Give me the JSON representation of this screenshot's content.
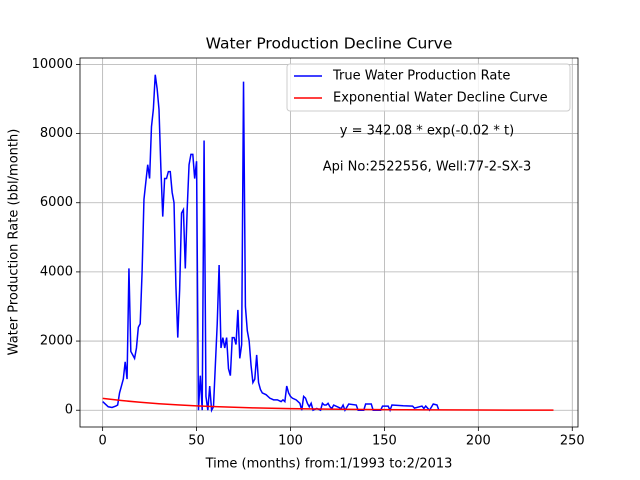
{
  "chart_data": {
    "type": "line",
    "title": "Water Production Decline Curve",
    "xlabel": "Time (months) from:1/1993 to:2/2013",
    "ylabel": "Water Production Rate (bbl/month)",
    "annotations": [
      "y = 342.08 * exp(-0.02 * t)",
      "Api No:2522556, Well:77-2-SX-3"
    ],
    "xlim": [
      -12.05,
      253.05
    ],
    "ylim": [
      -485,
      10185
    ],
    "xticks": [
      0,
      50,
      100,
      150,
      200,
      250
    ],
    "yticks": [
      0,
      2000,
      4000,
      6000,
      8000,
      10000
    ],
    "grid": true,
    "legend": "upper right",
    "series": [
      {
        "name": "True Water Production Rate",
        "color": "#0000ff",
        "x": [
          0,
          2,
          3,
          5,
          7,
          8,
          9,
          10,
          11,
          12,
          13,
          14,
          15,
          16,
          17,
          18,
          19,
          20,
          21,
          22,
          23,
          24,
          25,
          26,
          27,
          28,
          29,
          30,
          31,
          32,
          33,
          34,
          35,
          36,
          37,
          38,
          39,
          40,
          41,
          42,
          43,
          44,
          45,
          46,
          47,
          48,
          49,
          50,
          51,
          52,
          53,
          54,
          55,
          56,
          57,
          58,
          59,
          60,
          61,
          62,
          63,
          64,
          65,
          66,
          67,
          68,
          69,
          70,
          71,
          72,
          73,
          74,
          75,
          76,
          77,
          78,
          79,
          80,
          81,
          82,
          83,
          84,
          85,
          87,
          89,
          91,
          93,
          95,
          96,
          97,
          98,
          99,
          100,
          101,
          103,
          105,
          106,
          107,
          108,
          109,
          110,
          111,
          112,
          114,
          116,
          117,
          118,
          119,
          120,
          121,
          122,
          123,
          125,
          127,
          128,
          129,
          131,
          135,
          136,
          139,
          140,
          143,
          144,
          148,
          149,
          152,
          153,
          154,
          160,
          165,
          166,
          170,
          171,
          172,
          174,
          176,
          178,
          179
        ],
        "values": [
          250,
          150,
          100,
          80,
          120,
          150,
          500,
          700,
          900,
          1400,
          900,
          4100,
          1700,
          1600,
          1500,
          1800,
          2400,
          2500,
          4000,
          6100,
          6600,
          7100,
          6700,
          8200,
          8700,
          9700,
          9300,
          8700,
          7000,
          5600,
          6700,
          6700,
          6900,
          6900,
          6300,
          6000,
          3600,
          2100,
          3500,
          5700,
          5800,
          4100,
          5800,
          7100,
          7400,
          7400,
          6700,
          7200,
          0,
          1000,
          0,
          7800,
          400,
          0,
          700,
          0,
          100,
          1300,
          2500,
          4200,
          1800,
          2100,
          1800,
          2100,
          1200,
          1000,
          2100,
          2100,
          1900,
          2900,
          1500,
          1900,
          9500,
          3000,
          2300,
          2000,
          1300,
          800,
          900,
          1600,
          800,
          600,
          500,
          450,
          350,
          300,
          300,
          250,
          300,
          250,
          700,
          500,
          400,
          350,
          300,
          200,
          0,
          400,
          350,
          200,
          100,
          200,
          0,
          50,
          0,
          200,
          150,
          150,
          200,
          100,
          50,
          150,
          100,
          50,
          150,
          0,
          180,
          150,
          0,
          0,
          180,
          180,
          0,
          0,
          120,
          120,
          0,
          150,
          130,
          120,
          60,
          120,
          50,
          120,
          0,
          180,
          150,
          0
        ]
      },
      {
        "name": "Exponential Water Decline Curve",
        "color": "#ff0000",
        "x": [
          0,
          10,
          20,
          30,
          40,
          50,
          60,
          70,
          80,
          90,
          100,
          120,
          140,
          160,
          180,
          200,
          220,
          240
        ],
        "values": [
          342.08,
          280.07,
          229.3,
          187.73,
          153.7,
          125.84,
          103.03,
          84.35,
          69.06,
          56.54,
          46.29,
          31.03,
          20.8,
          13.94,
          9.35,
          6.27,
          4.2,
          2.81
        ]
      }
    ]
  }
}
